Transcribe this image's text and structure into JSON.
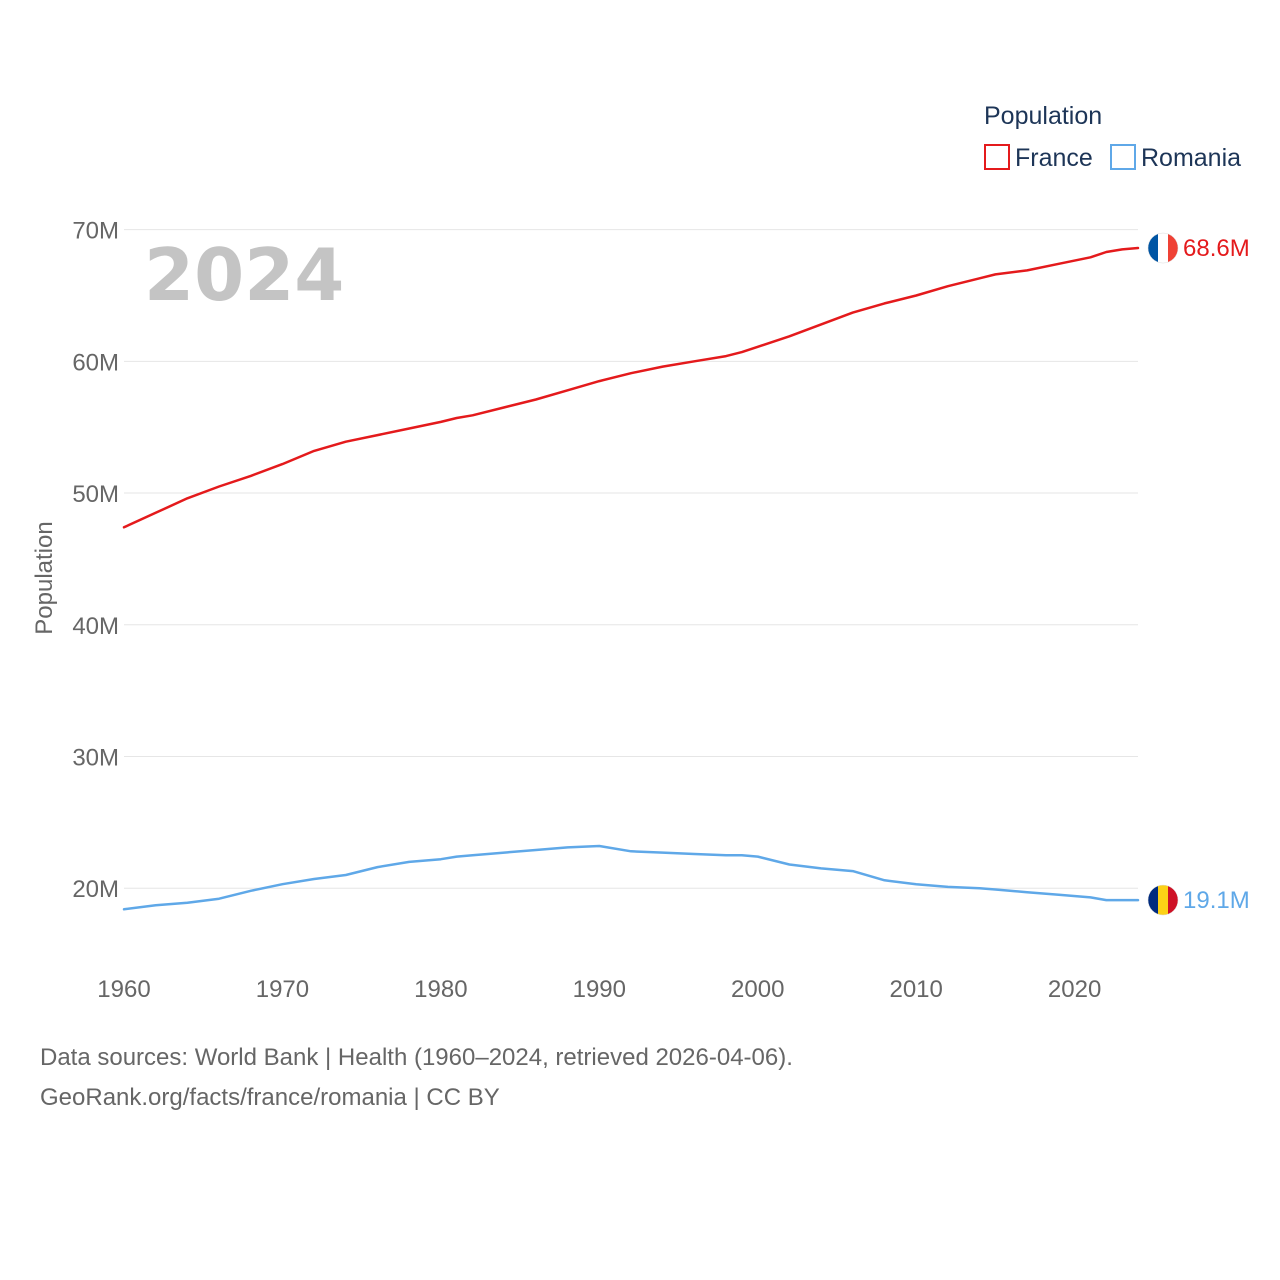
{
  "chart_data": {
    "type": "line",
    "ylabel": "Population",
    "year_label": "2024",
    "legend": {
      "title": "Population"
    },
    "y_ticks": [
      20,
      30,
      40,
      50,
      60,
      70
    ],
    "y_tick_labels": [
      "20M",
      "30M",
      "40M",
      "50M",
      "60M",
      "70M"
    ],
    "x_ticks": [
      1960,
      1970,
      1980,
      1990,
      2000,
      2010,
      2020
    ],
    "ylim": [
      15,
      71
    ],
    "xlim": [
      1960,
      2024
    ],
    "grid": true,
    "x": [
      1960,
      1962,
      1964,
      1966,
      1968,
      1970,
      1972,
      1974,
      1976,
      1978,
      1980,
      1981,
      1982,
      1984,
      1986,
      1988,
      1990,
      1992,
      1994,
      1996,
      1998,
      1999,
      2000,
      2002,
      2004,
      2006,
      2008,
      2010,
      2012,
      2014,
      2015,
      2017,
      2019,
      2021,
      2022,
      2023,
      2024
    ],
    "series": [
      {
        "name": "France",
        "color": "#e41a1c",
        "end_label": "68.6M",
        "flag": "france",
        "values": [
          47.4,
          48.5,
          49.6,
          50.5,
          51.3,
          52.2,
          53.2,
          53.9,
          54.4,
          54.9,
          55.4,
          55.7,
          55.9,
          56.5,
          57.1,
          57.8,
          58.5,
          59.1,
          59.6,
          60.0,
          60.4,
          60.7,
          61.1,
          61.9,
          62.8,
          63.7,
          64.4,
          65.0,
          65.7,
          66.3,
          66.6,
          66.9,
          67.4,
          67.9,
          68.3,
          68.5,
          68.6
        ]
      },
      {
        "name": "Romania",
        "color": "#5fa8e8",
        "end_label": "19.1M",
        "flag": "romania",
        "values": [
          18.4,
          18.7,
          18.9,
          19.2,
          19.8,
          20.3,
          20.7,
          21.0,
          21.6,
          22.0,
          22.2,
          22.4,
          22.5,
          22.7,
          22.9,
          23.1,
          23.2,
          22.8,
          22.7,
          22.6,
          22.5,
          22.5,
          22.4,
          21.8,
          21.5,
          21.3,
          20.6,
          20.3,
          20.1,
          20.0,
          19.9,
          19.7,
          19.5,
          19.3,
          19.1,
          19.1,
          19.1
        ]
      }
    ]
  },
  "footer": {
    "line1": "Data sources: World Bank | Health (1960–2024, retrieved 2026-04-06).",
    "line2": "GeoRank.org/facts/france/romania | CC BY"
  }
}
